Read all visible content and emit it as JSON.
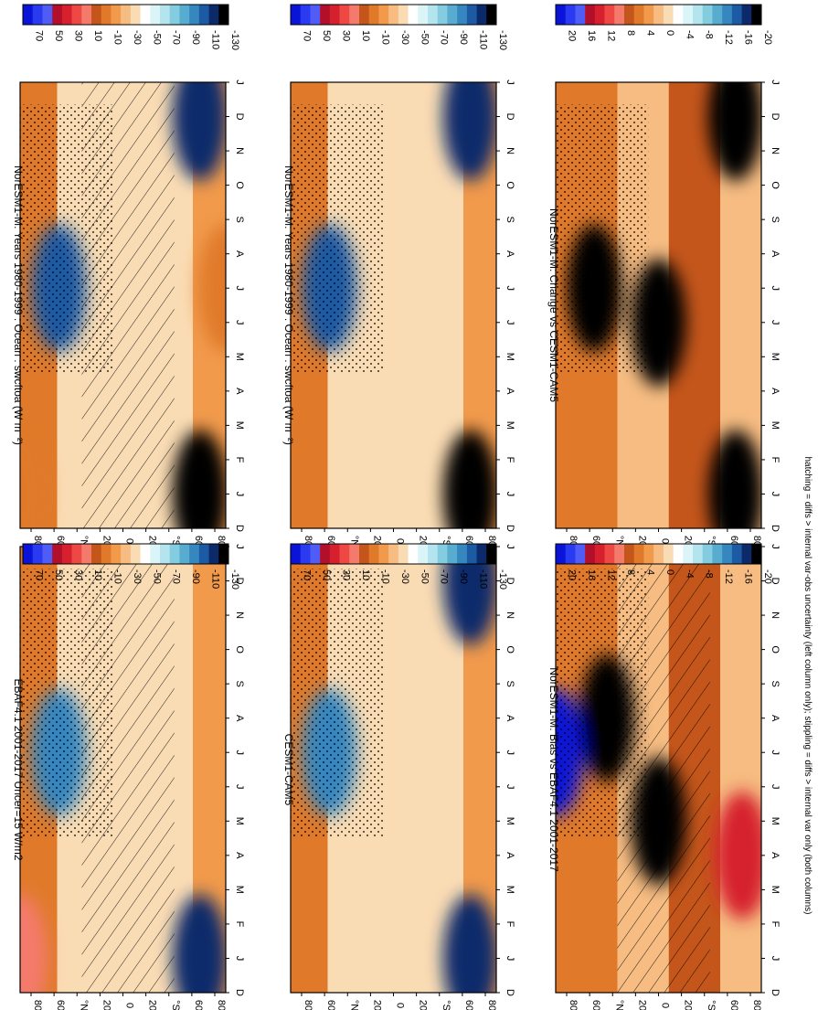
{
  "figure": {
    "footer": "hatching = diffs > internal var-obs uncertainty (left column only); stippling = diffs > internal var only (both columns)",
    "month_labels": [
      "D",
      "J",
      "F",
      "M",
      "A",
      "M",
      "J",
      "J",
      "A",
      "S",
      "O",
      "N",
      "D",
      "J"
    ],
    "lat_labels": [
      "80",
      "60",
      "°N",
      "20",
      "0",
      "20",
      "°S",
      "60",
      "80"
    ]
  },
  "colorbars": {
    "absolute": [
      "70",
      "50",
      "30",
      "10",
      "-10",
      "-30",
      "-50",
      "-70",
      "-90",
      "-110",
      "-130"
    ],
    "difference": [
      "20",
      "16",
      "12",
      "8",
      "4",
      "0",
      "-4",
      "-8",
      "-12",
      "-16",
      "-20"
    ],
    "absolute_colors": [
      "#0a14d8",
      "#2a3af0",
      "#4f5cf5",
      "#b2102a",
      "#d6202e",
      "#ee4844",
      "#f47a6c",
      "#c4561b",
      "#e07a2a",
      "#f19a4c",
      "#f6bc82",
      "#fadcb4",
      "#ffffff",
      "#daf4f8",
      "#b4e4ee",
      "#84cce0",
      "#58acd0",
      "#3686c0",
      "#1c5aa4",
      "#0c2a6a",
      "#000000"
    ],
    "difference_colors": [
      "#0a14d8",
      "#2a3af0",
      "#4f5cf5",
      "#b2102a",
      "#d6202e",
      "#ee4844",
      "#f47a6c",
      "#c4561b",
      "#e07a2a",
      "#f19a4c",
      "#f6bc82",
      "#fadcb4",
      "#ffffff",
      "#daf4f8",
      "#b4e4ee",
      "#84cce0",
      "#58acd0",
      "#3686c0",
      "#1c5aa4",
      "#0c2a6a",
      "#000000"
    ]
  },
  "chart_data": [
    {
      "type": "heatmap",
      "title": "NorESM1-M: Years 1980-1999 : Ocean : swcftoa (W m⁻²)",
      "position": "top-left",
      "x": "month (D to J)",
      "y": "latitude (80N to 80S)",
      "colorbar": "absolute",
      "hatching": true,
      "stippling": true,
      "features": [
        {
          "lat": 50,
          "month": "Jul",
          "value": -115
        },
        {
          "lat": -60,
          "month": "Jan",
          "value": -130
        },
        {
          "lat": -60,
          "month": "Dec",
          "value": -125
        },
        {
          "lat": 80,
          "month": "Jan",
          "value": -5
        },
        {
          "lat": -80,
          "month": "Jul",
          "value": -5
        }
      ]
    },
    {
      "type": "heatmap",
      "title": "NorESM1-M: Years 1980-1999 : Ocean : swcftoa (W m⁻²)",
      "position": "top-right",
      "x": "month (D to J)",
      "y": "latitude (80N to 80S)",
      "colorbar": "absolute",
      "hatching": false,
      "stippling": true,
      "features": [
        {
          "lat": 50,
          "month": "Jul",
          "value": -115
        },
        {
          "lat": -60,
          "month": "Jan",
          "value": -130
        },
        {
          "lat": -60,
          "month": "Dec",
          "value": -125
        }
      ]
    },
    {
      "type": "heatmap",
      "title": "EBAF4.1 2001-2017 Uncer=15 W/m2",
      "position": "middle-left",
      "x": "month (D to J)",
      "y": "latitude (80N to 80S)",
      "colorbar": "absolute",
      "hatching": true,
      "stippling": true,
      "features": [
        {
          "lat": 50,
          "month": "Jul",
          "value": -100
        },
        {
          "lat": -60,
          "month": "Jan",
          "value": -120
        },
        {
          "lat": 80,
          "month": "Jan",
          "value": 10
        }
      ]
    },
    {
      "type": "heatmap",
      "title": "CESM1-CAM5",
      "position": "middle-right",
      "x": "month (D to J)",
      "y": "latitude (80N to 80S)",
      "colorbar": "absolute",
      "hatching": false,
      "stippling": true,
      "features": [
        {
          "lat": 50,
          "month": "Jul",
          "value": -105
        },
        {
          "lat": -60,
          "month": "Jan",
          "value": -120
        },
        {
          "lat": -60,
          "month": "Dec",
          "value": -125
        }
      ]
    },
    {
      "type": "heatmap",
      "title": "NorESM1-M: Bias vs EBAF4.1 2001-2017",
      "position": "bottom-left",
      "x": "month (D to J)",
      "y": "latitude (80N to 80S)",
      "colorbar": "difference",
      "hatching": true,
      "stippling": true,
      "features": [
        {
          "lat": 40,
          "month": "Aug",
          "value": -20
        },
        {
          "lat": 0,
          "month": "May",
          "value": -20
        },
        {
          "lat": 80,
          "month": "Jul",
          "value": 20
        },
        {
          "lat": -65,
          "month": "Apr",
          "value": 12
        }
      ]
    },
    {
      "type": "heatmap",
      "title": "NorESM1-M: Change vs CESM1-CAM5",
      "position": "bottom-right",
      "x": "month (D to J)",
      "y": "latitude (80N to 80S)",
      "colorbar": "difference",
      "hatching": false,
      "stippling": true,
      "features": [
        {
          "lat": 50,
          "month": "Jul",
          "value": -20
        },
        {
          "lat": 0,
          "month": "Jun",
          "value": -20
        },
        {
          "lat": -60,
          "month": "Jan",
          "value": -20
        },
        {
          "lat": -60,
          "month": "Dec",
          "value": -20
        }
      ]
    }
  ]
}
